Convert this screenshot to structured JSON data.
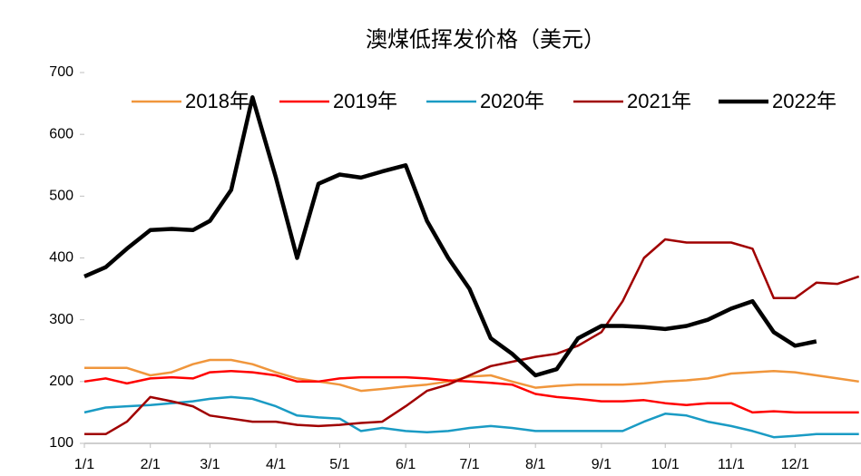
{
  "chart_data": {
    "type": "line",
    "title": "澳煤低挥发价格（美元）",
    "x": [
      "1/1",
      "1/11",
      "1/21",
      "2/1",
      "2/11",
      "2/21",
      "3/1",
      "3/11",
      "3/21",
      "4/1",
      "4/11",
      "4/21",
      "5/1",
      "5/11",
      "5/21",
      "6/1",
      "6/11",
      "6/21",
      "7/1",
      "7/11",
      "7/21",
      "8/1",
      "8/11",
      "8/21",
      "9/1",
      "9/11",
      "9/21",
      "10/1",
      "10/11",
      "10/21",
      "11/1",
      "11/11",
      "11/21",
      "12/1",
      "12/11",
      "12/21",
      "12/31"
    ],
    "xticks": [
      "1/1",
      "2/1",
      "3/1",
      "4/1",
      "5/1",
      "6/1",
      "7/1",
      "8/1",
      "9/1",
      "10/1",
      "11/1",
      "12/1"
    ],
    "ylim": [
      100,
      700
    ],
    "yticks": [
      100,
      200,
      300,
      400,
      500,
      600,
      700
    ],
    "grid": false,
    "legend": "top",
    "series": [
      {
        "name": "2018年",
        "color": "#f0963c",
        "width": 2.5,
        "values": [
          222,
          222,
          222,
          210,
          215,
          228,
          235,
          235,
          228,
          215,
          205,
          200,
          195,
          185,
          188,
          192,
          195,
          200,
          208,
          210,
          200,
          190,
          193,
          195,
          195,
          195,
          197,
          200,
          202,
          205,
          213,
          215,
          217,
          215,
          210,
          205,
          200
        ]
      },
      {
        "name": "2019年",
        "color": "#ff0000",
        "width": 2.5,
        "values": [
          200,
          205,
          197,
          205,
          207,
          205,
          215,
          217,
          215,
          210,
          200,
          200,
          205,
          207,
          207,
          207,
          205,
          202,
          200,
          198,
          195,
          180,
          175,
          172,
          168,
          168,
          170,
          165,
          162,
          165,
          165,
          150,
          152,
          150,
          150,
          150,
          150
        ]
      },
      {
        "name": "2020年",
        "color": "#1a9bc4",
        "width": 2.5,
        "values": [
          150,
          158,
          160,
          162,
          165,
          168,
          172,
          175,
          172,
          160,
          145,
          142,
          140,
          120,
          125,
          120,
          118,
          120,
          125,
          128,
          125,
          120,
          120,
          120,
          120,
          120,
          135,
          148,
          145,
          135,
          128,
          120,
          110,
          112,
          115,
          115,
          115
        ]
      },
      {
        "name": "2021年",
        "color": "#a00000",
        "width": 2.5,
        "values": [
          115,
          115,
          135,
          175,
          168,
          160,
          145,
          140,
          135,
          135,
          130,
          128,
          130,
          133,
          135,
          160,
          185,
          195,
          210,
          225,
          232,
          240,
          245,
          258,
          280,
          330,
          400,
          430,
          425,
          425,
          425,
          415,
          335,
          335,
          360,
          358,
          370
        ]
      },
      {
        "name": "2022年",
        "color": "#000000",
        "width": 4.5,
        "values": [
          370,
          385,
          415,
          445,
          447,
          445,
          460,
          510,
          660,
          530,
          400,
          520,
          535,
          530,
          540,
          550,
          460,
          400,
          350,
          270,
          245,
          210,
          220,
          270,
          290,
          290,
          288,
          285,
          290,
          300,
          318,
          330,
          280,
          258,
          265,
          null,
          null
        ]
      }
    ]
  }
}
